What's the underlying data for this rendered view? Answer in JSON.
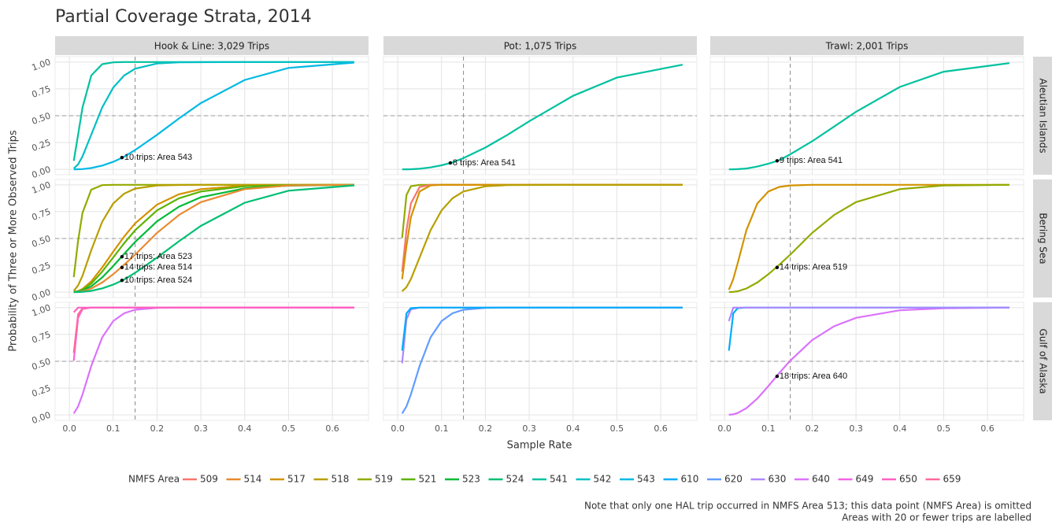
{
  "title": "Partial Coverage Strata, 2014",
  "x_label": "Sample Rate",
  "y_label": "Probability of Three or More Observed Trips",
  "facet_columns": [
    "Hook & Line: 3,029 Trips",
    "Pot: 1,075 Trips",
    "Trawl: 2,001 Trips"
  ],
  "facet_rows": [
    "Aleutian Islands",
    "Bering Sea",
    "Gulf of Alaska"
  ],
  "legend": {
    "title": "NMFS Area",
    "items": [
      {
        "name": "509",
        "color": "#F8766D"
      },
      {
        "name": "514",
        "color": "#E98A2F"
      },
      {
        "name": "517",
        "color": "#D39200"
      },
      {
        "name": "518",
        "color": "#B79F00"
      },
      {
        "name": "519",
        "color": "#93AA00"
      },
      {
        "name": "521",
        "color": "#5EB300"
      },
      {
        "name": "523",
        "color": "#00BA38"
      },
      {
        "name": "524",
        "color": "#00BF74"
      },
      {
        "name": "541",
        "color": "#00C19F"
      },
      {
        "name": "542",
        "color": "#00BFC4"
      },
      {
        "name": "543",
        "color": "#00B9E3"
      },
      {
        "name": "610",
        "color": "#00ADFA"
      },
      {
        "name": "620",
        "color": "#619CFF"
      },
      {
        "name": "630",
        "color": "#AE87FF"
      },
      {
        "name": "640",
        "color": "#DB72FB"
      },
      {
        "name": "649",
        "color": "#F564E3"
      },
      {
        "name": "650",
        "color": "#FF61C3"
      },
      {
        "name": "659",
        "color": "#FF699C"
      }
    ]
  },
  "notes": [
    "Note that only one HAL trip occurred in NMFS Area 513; this data point (NMFS Area) is omitted",
    "Areas with 20 or fewer trips are labelled"
  ],
  "axes": {
    "x": [
      0.01,
      0.02,
      0.03,
      0.05,
      0.075,
      0.1,
      0.125,
      0.15,
      0.2,
      0.25,
      0.3,
      0.4,
      0.5,
      0.65
    ],
    "xlim": [
      0,
      0.65
    ],
    "xticks": [
      {
        "value": 0,
        "label": "0.0"
      },
      {
        "value": 0.1,
        "label": "0.1"
      },
      {
        "value": 0.2,
        "label": "0.2"
      },
      {
        "value": 0.3,
        "label": "0.3"
      },
      {
        "value": 0.4,
        "label": "0.4"
      },
      {
        "value": 0.5,
        "label": "0.5"
      },
      {
        "value": 0.6,
        "label": "0.6"
      }
    ],
    "ylim": [
      0,
      1
    ],
    "yticks": [
      {
        "value": 0,
        "label": "0.00"
      },
      {
        "value": 0.25,
        "label": "0.25"
      },
      {
        "value": 0.5,
        "label": "0.50"
      },
      {
        "value": 0.75,
        "label": "0.75"
      },
      {
        "value": 1,
        "label": "1.00"
      }
    ],
    "grid": true,
    "reference_x": 0.15,
    "reference_y": 0.5
  },
  "chart_data": [
    {
      "type": "line",
      "series": [
        {
          "name": "541",
          "color": "#00C19F",
          "values": [
            0.08,
            0.323,
            0.577,
            0.875,
            0.98,
            0.997,
            1,
            1,
            1,
            1,
            1,
            1,
            1,
            1
          ]
        },
        {
          "name": "542",
          "color": "#00BFC4",
          "values": [
            0.008,
            0.047,
            0.121,
            0.323,
            0.577,
            0.762,
            0.875,
            0.938,
            0.986,
            0.997,
            0.999,
            1,
            1,
            1
          ]
        },
        {
          "name": "543",
          "color": "#00B9E3",
          "values": [
            0,
            0.001,
            0.003,
            0.012,
            0.035,
            0.07,
            0.118,
            0.18,
            0.322,
            0.474,
            0.617,
            0.833,
            0.945,
            0.995
          ]
        }
      ],
      "annotations": [
        {
          "text": "10 trips: Area 543",
          "x": 0.12,
          "y": 0.11
        }
      ]
    },
    {
      "type": "line",
      "series": [
        {
          "name": "541",
          "color": "#00C19F",
          "values": [
            0,
            0.0005,
            0.0015,
            0.006,
            0.018,
            0.038,
            0.065,
            0.105,
            0.203,
            0.321,
            0.448,
            0.685,
            0.855,
            0.975
          ]
        }
      ],
      "annotations": [
        {
          "text": "8 trips: Area 541",
          "x": 0.12,
          "y": 0.06
        }
      ]
    },
    {
      "type": "line",
      "series": [
        {
          "name": "541",
          "color": "#00C19F",
          "values": [
            0,
            0.0007,
            0.002,
            0.008,
            0.026,
            0.053,
            0.085,
            0.141,
            0.262,
            0.399,
            0.537,
            0.768,
            0.91,
            0.99
          ]
        }
      ],
      "annotations": [
        {
          "text": "9 trips: Area 541",
          "x": 0.12,
          "y": 0.08
        }
      ]
    },
    {
      "type": "line",
      "series": [
        {
          "name": "519",
          "color": "#93AA00",
          "values": [
            0.14,
            0.48,
            0.74,
            0.955,
            0.997,
            1,
            1,
            1,
            1,
            1,
            1,
            1,
            1,
            1
          ]
        },
        {
          "name": "518",
          "color": "#B79F00",
          "values": [
            0.011,
            0.063,
            0.153,
            0.391,
            0.656,
            0.826,
            0.918,
            0.965,
            0.994,
            0.999,
            1,
            1,
            1,
            1
          ]
        },
        {
          "name": "517",
          "color": "#D39200",
          "values": [
            0.001,
            0.01,
            0.03,
            0.1,
            0.23,
            0.377,
            0.518,
            0.641,
            0.815,
            0.912,
            0.96,
            0.993,
            0.999,
            1
          ]
        },
        {
          "name": "521",
          "color": "#5EB300",
          "values": [
            0.001,
            0.008,
            0.023,
            0.08,
            0.191,
            0.323,
            0.456,
            0.577,
            0.762,
            0.875,
            0.938,
            0.986,
            0.997,
            1
          ]
        },
        {
          "name": "523",
          "color": "#00BA38",
          "values": [
            0.001,
            0.005,
            0.015,
            0.055,
            0.137,
            0.243,
            0.357,
            0.468,
            0.66,
            0.796,
            0.884,
            0.967,
            0.992,
            1
          ]
        },
        {
          "name": "514",
          "color": "#E98A2F",
          "values": [
            0.0004,
            0.003,
            0.009,
            0.034,
            0.09,
            0.167,
            0.256,
            0.35,
            0.552,
            0.719,
            0.839,
            0.96,
            0.994,
            1
          ]
        },
        {
          "name": "524",
          "color": "#00BF74",
          "values": [
            0,
            0.001,
            0.003,
            0.012,
            0.035,
            0.07,
            0.118,
            0.18,
            0.322,
            0.474,
            0.617,
            0.833,
            0.945,
            0.995
          ]
        }
      ],
      "annotations": [
        {
          "text": "17 trips: Area 523",
          "x": 0.12,
          "y": 0.33
        },
        {
          "text": "14 trips: Area 514",
          "x": 0.12,
          "y": 0.23
        },
        {
          "text": "10 trips: Area 524",
          "x": 0.12,
          "y": 0.11
        }
      ]
    },
    {
      "type": "line",
      "series": [
        {
          "name": "519",
          "color": "#93AA00",
          "values": [
            0.506,
            0.905,
            0.987,
            1,
            1,
            1,
            1,
            1,
            1,
            1,
            1,
            1,
            1,
            1
          ]
        },
        {
          "name": "509",
          "color": "#F8766D",
          "values": [
            0.191,
            0.577,
            0.826,
            0.98,
            1,
            1,
            1,
            1,
            1,
            1,
            1,
            1,
            1,
            1
          ]
        },
        {
          "name": "517",
          "color": "#D39200",
          "values": [
            0.121,
            0.43,
            0.697,
            0.938,
            0.995,
            1,
            1,
            1,
            1,
            1,
            1,
            1,
            1,
            1
          ]
        },
        {
          "name": "518",
          "color": "#B79F00",
          "values": [
            0.008,
            0.047,
            0.121,
            0.323,
            0.577,
            0.762,
            0.875,
            0.938,
            0.986,
            0.997,
            0.999,
            1,
            1,
            1
          ]
        }
      ],
      "annotations": []
    },
    {
      "type": "line",
      "series": [
        {
          "name": "517",
          "color": "#D39200",
          "values": [
            0.023,
            0.121,
            0.269,
            0.577,
            0.826,
            0.938,
            0.98,
            0.994,
            1,
            1,
            1,
            1,
            1,
            1
          ]
        },
        {
          "name": "519",
          "color": "#93AA00",
          "values": [
            0.0004,
            0.003,
            0.009,
            0.034,
            0.09,
            0.167,
            0.256,
            0.35,
            0.552,
            0.719,
            0.839,
            0.96,
            0.994,
            1
          ]
        }
      ],
      "annotations": [
        {
          "text": "14 trips: Area 519",
          "x": 0.12,
          "y": 0.23
        }
      ]
    },
    {
      "type": "line",
      "series": [
        {
          "name": "640",
          "color": "#DB72FB",
          "values": [
            0.014,
            0.08,
            0.191,
            0.456,
            0.723,
            0.875,
            0.947,
            0.98,
            0.998,
            1,
            1,
            1,
            1,
            1
          ]
        },
        {
          "name": "649",
          "color": "#F564E3",
          "values": [
            0.506,
            0.905,
            0.987,
            1,
            1,
            1,
            1,
            1,
            1,
            1,
            1,
            1,
            1,
            1
          ]
        },
        {
          "name": "659",
          "color": "#FF699C",
          "values": [
            0.577,
            0.938,
            0.994,
            1,
            1,
            1,
            1,
            1,
            1,
            1,
            1,
            1,
            1,
            1
          ]
        },
        {
          "name": "650",
          "color": "#FF61C3",
          "values": [
            0.957,
            1,
            1,
            1,
            1,
            1,
            1,
            1,
            1,
            1,
            1,
            1,
            1,
            1
          ]
        }
      ],
      "annotations": []
    },
    {
      "type": "line",
      "series": [
        {
          "name": "620",
          "color": "#619CFF",
          "values": [
            0.014,
            0.08,
            0.191,
            0.456,
            0.723,
            0.875,
            0.947,
            0.98,
            0.998,
            1,
            1,
            1,
            1,
            1
          ]
        },
        {
          "name": "630",
          "color": "#AE87FF",
          "values": [
            0.482,
            0.89,
            0.984,
            1,
            1,
            1,
            1,
            1,
            1,
            1,
            1,
            1,
            1,
            1
          ]
        },
        {
          "name": "610",
          "color": "#00ADFA",
          "values": [
            0.599,
            0.946,
            0.995,
            1,
            1,
            1,
            1,
            1,
            1,
            1,
            1,
            1,
            1,
            1
          ]
        }
      ],
      "annotations": []
    },
    {
      "type": "line",
      "series": [
        {
          "name": "640",
          "color": "#DB72FB",
          "values": [
            0.001,
            0.006,
            0.018,
            0.063,
            0.153,
            0.269,
            0.391,
            0.506,
            0.697,
            0.826,
            0.905,
            0.975,
            0.994,
            1
          ]
        },
        {
          "name": "610",
          "color": "#00ADFA",
          "values": [
            0.599,
            0.946,
            0.995,
            1,
            1,
            1,
            1,
            1,
            1,
            1,
            1,
            1,
            1,
            1
          ]
        },
        {
          "name": "630",
          "color": "#AE87FF",
          "values": [
            0.875,
            1,
            1,
            1,
            1,
            1,
            1,
            1,
            1,
            1,
            1,
            1,
            1,
            1
          ]
        }
      ],
      "annotations": [
        {
          "text": "18 trips: Area 640",
          "x": 0.12,
          "y": 0.36
        }
      ]
    }
  ]
}
